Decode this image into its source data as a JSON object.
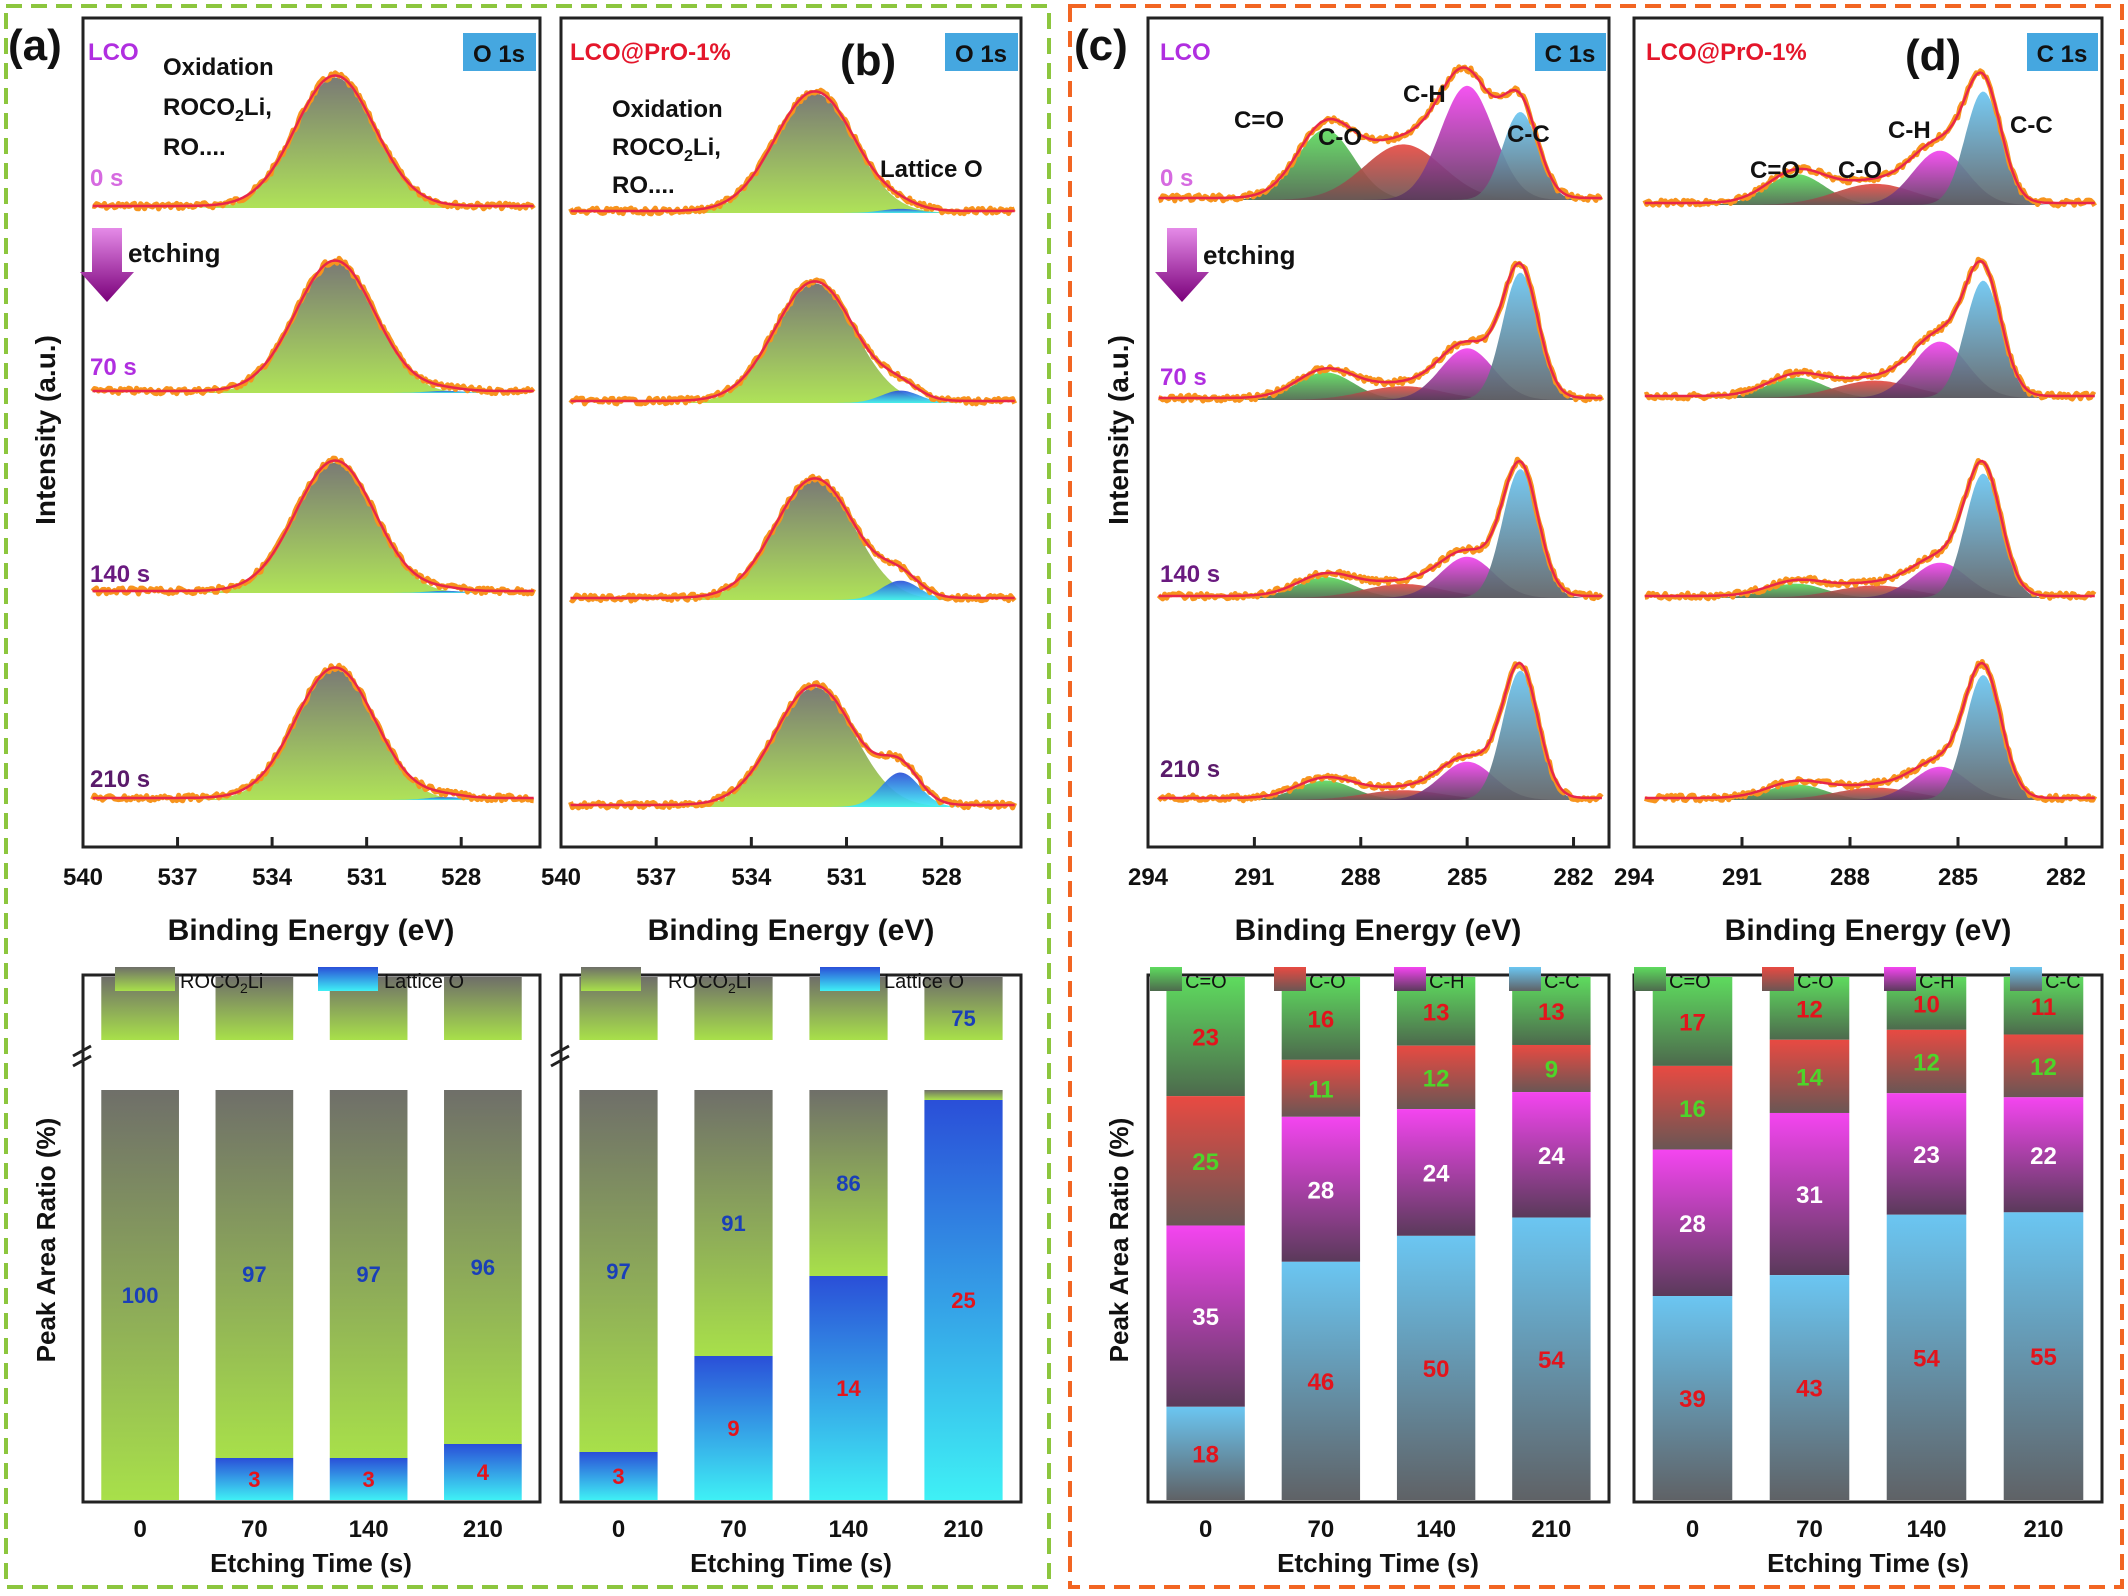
{
  "colors": {
    "green_dash": "#8cc63e",
    "orange_dash": "#f26522",
    "sample_lco": "#b02ee0",
    "sample_pro": "#e4162b",
    "badge": "#45a7e0",
    "envelope": "#e8264a",
    "raw": "#f7941d",
    "green_fill": "#9ed64a",
    "gray_fill": "#7a7a72",
    "lattice_fill": "#3cc7f0",
    "c_eq_o": "#39b54a",
    "c_o": "#e0423c",
    "c_h": "#c53ad6",
    "c_c": "#3b9ee0",
    "label_red": "#e3141c",
    "label_blue": "#1a3fb8",
    "label_white": "#ffffff",
    "label_green": "#4ed42a"
  },
  "panels": {
    "a": {
      "letter": "(a)",
      "sample": "LCO",
      "badge": "O 1s",
      "annotation": [
        "Oxidation",
        "ROCO",
        "2",
        "Li,",
        "RO...."
      ]
    },
    "b": {
      "letter": "(b)",
      "sample": "LCO@PrO-1%",
      "badge": "O 1s",
      "annotation": [
        "Oxidation",
        "ROCO",
        "2",
        "Li,",
        "RO...."
      ],
      "lattice_label": "Lattice O"
    },
    "c": {
      "letter": "(c)",
      "sample": "LCO",
      "badge": "C 1s",
      "peak_labels": [
        "C=O",
        "C-O",
        "C-H",
        "C-C"
      ]
    },
    "d": {
      "letter": "(d)",
      "sample": "LCO@PrO-1%",
      "badge": "C 1s",
      "peak_labels": [
        "C=O",
        "C-O",
        "C-H",
        "C-C"
      ]
    }
  },
  "time_labels": [
    "0 s",
    "70 s",
    "140 s",
    "210 s"
  ],
  "etching_label": "etching",
  "y_label_top": "Intensity (a.u.)",
  "y_label_bottom": "Peak Area Ratio (%)",
  "x_label_top": "Binding Energy (eV)",
  "x_label_bottom": "Etching Time (s)",
  "legend_o": [
    "ROCO",
    "2",
    "Li",
    "Lattice O"
  ],
  "legend_c": [
    "C=O",
    "C-O",
    "C-H",
    "C-C"
  ],
  "chart_data": [
    {
      "type": "area",
      "panel": "a",
      "xlabel": "Binding Energy (eV)",
      "ylabel": "Intensity (a.u.)",
      "xlim": [
        540,
        525.5
      ],
      "x_ticks": [
        540,
        537,
        534,
        531,
        528
      ],
      "peaks": {
        "ROCO2Li": 532.0,
        "Lattice O": 528.5
      },
      "series": [
        {
          "name": "0 s",
          "lattice_o_percent": 0
        },
        {
          "name": "70 s",
          "lattice_o_percent": 3
        },
        {
          "name": "140 s",
          "lattice_o_percent": 3
        },
        {
          "name": "210 s",
          "lattice_o_percent": 4
        }
      ]
    },
    {
      "type": "area",
      "panel": "b",
      "xlabel": "Binding Energy (eV)",
      "xlim": [
        540,
        525.5
      ],
      "x_ticks": [
        540,
        537,
        534,
        531,
        528
      ],
      "peaks": {
        "ROCO2Li": 532.0,
        "Lattice O": 529.3
      },
      "series": [
        {
          "name": "0 s",
          "lattice_o_percent": 3
        },
        {
          "name": "70 s",
          "lattice_o_percent": 9
        },
        {
          "name": "140 s",
          "lattice_o_percent": 14
        },
        {
          "name": "210 s",
          "lattice_o_percent": 25
        }
      ]
    },
    {
      "type": "area",
      "panel": "c",
      "xlabel": "Binding Energy (eV)",
      "ylabel": "Intensity (a.u.)",
      "xlim": [
        294,
        281
      ],
      "x_ticks": [
        294,
        291,
        288,
        285,
        282
      ],
      "peaks": {
        "C=O": 289.0,
        "C-O": 286.8,
        "C-H": 285.0,
        "C-C": 283.5
      },
      "series": [
        {
          "name": "0 s",
          "values": [
            23,
            25,
            35,
            18
          ]
        },
        {
          "name": "70 s",
          "values": [
            16,
            11,
            28,
            46
          ]
        },
        {
          "name": "140 s",
          "values": [
            13,
            12,
            24,
            50
          ]
        },
        {
          "name": "210 s",
          "values": [
            13,
            9,
            24,
            54
          ]
        }
      ]
    },
    {
      "type": "area",
      "panel": "d",
      "xlabel": "Binding Energy (eV)",
      "xlim": [
        294,
        281
      ],
      "x_ticks": [
        294,
        291,
        288,
        285,
        282
      ],
      "peaks": {
        "C=O": 289.5,
        "C-O": 287.3,
        "C-H": 285.5,
        "C-C": 284.3
      },
      "series": [
        {
          "name": "0 s",
          "values": [
            17,
            16,
            28,
            39
          ]
        },
        {
          "name": "70 s",
          "values": [
            12,
            14,
            31,
            43
          ]
        },
        {
          "name": "140 s",
          "values": [
            10,
            12,
            23,
            54
          ]
        },
        {
          "name": "210 s",
          "values": [
            11,
            12,
            22,
            55
          ]
        }
      ]
    },
    {
      "type": "bar",
      "stacked": true,
      "panel": "a-bottom",
      "xlabel": "Etching Time (s)",
      "ylabel": "Peak Area Ratio (%)",
      "categories": [
        "0",
        "70",
        "140",
        "210"
      ],
      "axis_break": true,
      "series": [
        {
          "name": "ROCO2Li",
          "values": [
            100,
            97,
            97,
            96
          ]
        },
        {
          "name": "Lattice O",
          "values": [
            0,
            3,
            3,
            4
          ]
        }
      ]
    },
    {
      "type": "bar",
      "stacked": true,
      "panel": "b-bottom",
      "xlabel": "Etching Time (s)",
      "categories": [
        "0",
        "70",
        "140",
        "210"
      ],
      "axis_break": true,
      "series": [
        {
          "name": "ROCO2Li",
          "values": [
            97,
            91,
            86,
            75
          ]
        },
        {
          "name": "Lattice O",
          "values": [
            3,
            9,
            14,
            25
          ]
        }
      ]
    },
    {
      "type": "bar",
      "stacked": true,
      "panel": "c-bottom",
      "xlabel": "Etching Time (s)",
      "ylabel": "Peak Area Ratio (%)",
      "categories": [
        "0",
        "70",
        "140",
        "210"
      ],
      "series": [
        {
          "name": "C=O",
          "values": [
            23,
            16,
            13,
            13
          ]
        },
        {
          "name": "C-O",
          "values": [
            25,
            11,
            12,
            9
          ]
        },
        {
          "name": "C-H",
          "values": [
            35,
            28,
            24,
            24
          ]
        },
        {
          "name": "C-C",
          "values": [
            18,
            46,
            50,
            54
          ]
        }
      ]
    },
    {
      "type": "bar",
      "stacked": true,
      "panel": "d-bottom",
      "xlabel": "Etching Time (s)",
      "categories": [
        "0",
        "70",
        "140",
        "210"
      ],
      "series": [
        {
          "name": "C=O",
          "values": [
            17,
            12,
            10,
            11
          ]
        },
        {
          "name": "C-O",
          "values": [
            16,
            14,
            12,
            12
          ]
        },
        {
          "name": "C-H",
          "values": [
            28,
            31,
            23,
            22
          ]
        },
        {
          "name": "C-C",
          "values": [
            39,
            43,
            54,
            55
          ]
        }
      ]
    }
  ]
}
